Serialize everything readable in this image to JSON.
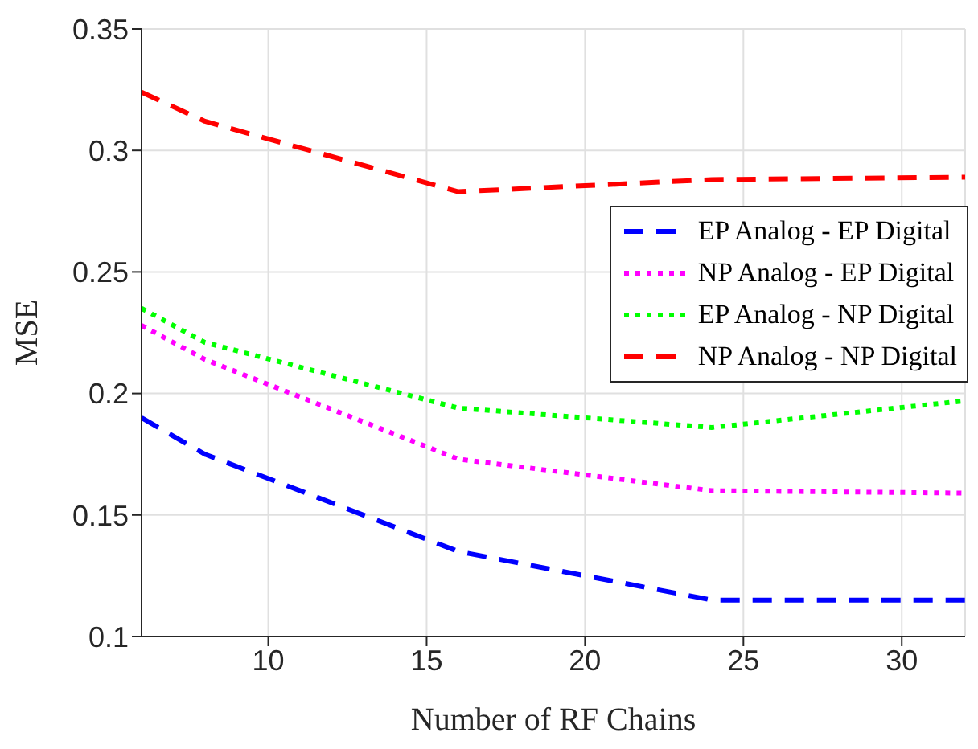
{
  "chart_data": {
    "type": "line",
    "xlabel": "Number of RF Chains",
    "ylabel": "MSE",
    "x": [
      6,
      8,
      16,
      24,
      32
    ],
    "series": [
      {
        "name": "EP Analog - EP Digital",
        "color": "#0000ff",
        "line_style": "dashed",
        "values": [
          0.19,
          0.175,
          0.135,
          0.115,
          0.115
        ]
      },
      {
        "name": "NP Analog - EP Digital",
        "color": "#ff00ff",
        "line_style": "dotted",
        "values": [
          0.228,
          0.214,
          0.173,
          0.16,
          0.159
        ]
      },
      {
        "name": "EP Analog - NP Digital",
        "color": "#00ff00",
        "line_style": "dotted",
        "values": [
          0.235,
          0.221,
          0.194,
          0.186,
          0.197
        ]
      },
      {
        "name": "NP Analog - NP Digital",
        "color": "#ff0000",
        "line_style": "dashed",
        "values": [
          0.324,
          0.312,
          0.283,
          0.288,
          0.289
        ]
      }
    ],
    "xlim": [
      6,
      32
    ],
    "xticks": [
      10,
      15,
      20,
      25,
      30
    ],
    "ylim": [
      0.1,
      0.35
    ],
    "yticks": [
      0.1,
      0.15,
      0.2,
      0.25,
      0.3,
      0.35
    ],
    "grid": true,
    "legend": "top right"
  }
}
